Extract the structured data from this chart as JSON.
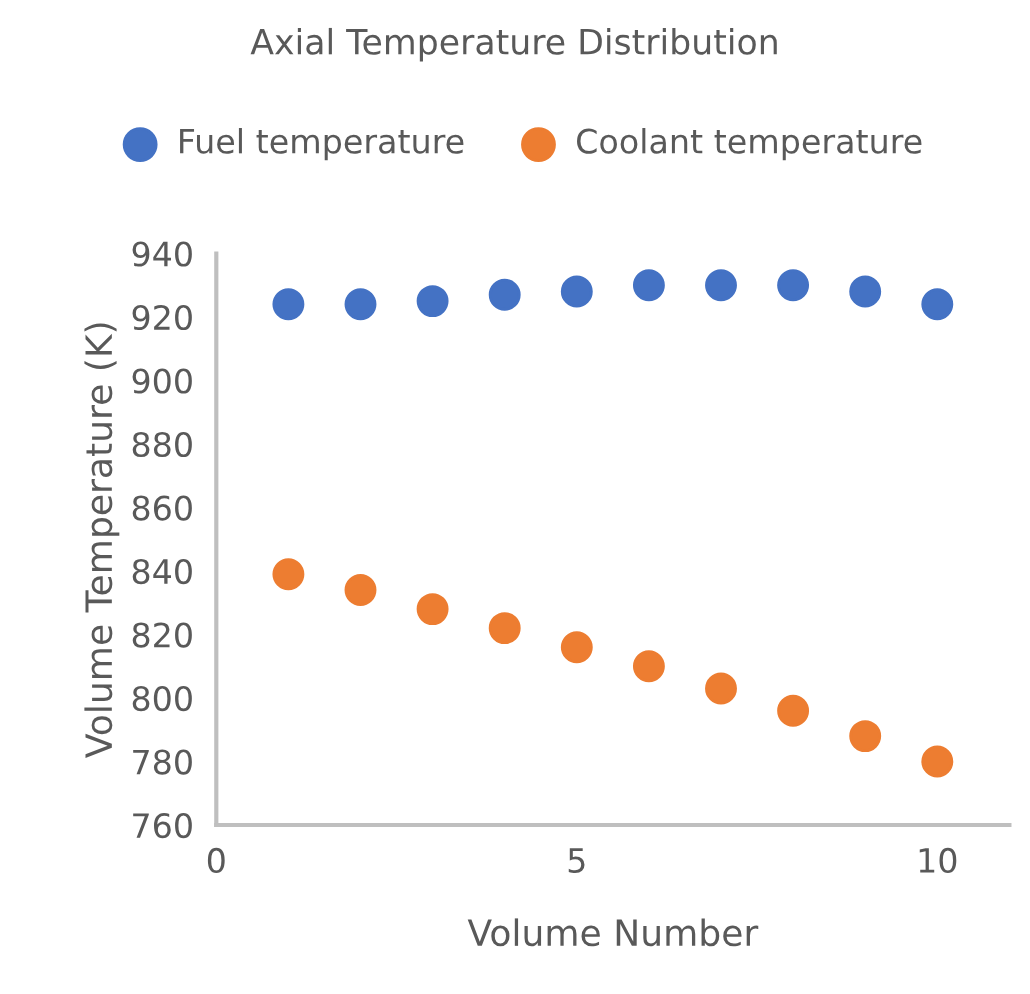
{
  "chart_data": {
    "type": "scatter",
    "title": "Axial Temperature Distribution",
    "xlabel": "Volume Number",
    "ylabel": "Volume Temperature (K)",
    "x": [
      1,
      2,
      3,
      4,
      5,
      6,
      7,
      8,
      9,
      10
    ],
    "series": [
      {
        "name": "Fuel temperature",
        "color": "#4472c4",
        "values": [
          924,
          924,
          925,
          927,
          928,
          930,
          930,
          930,
          928,
          924
        ]
      },
      {
        "name": "Coolant temperature",
        "color": "#ed7d31",
        "values": [
          839,
          834,
          828,
          822,
          816,
          810,
          803,
          796,
          788,
          780
        ]
      }
    ],
    "xlim": [
      0,
      11
    ],
    "xticks": [
      0,
      5,
      10
    ],
    "ylim": [
      760,
      940
    ],
    "yticks": [
      760,
      780,
      800,
      820,
      840,
      860,
      880,
      900,
      920,
      940
    ],
    "grid": false,
    "legend": "top",
    "marker": "circle"
  }
}
